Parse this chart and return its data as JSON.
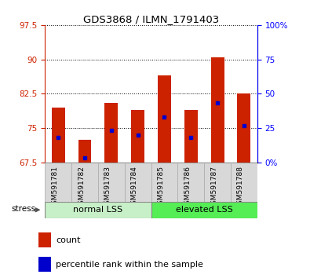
{
  "title": "GDS3868 / ILMN_1791403",
  "samples": [
    "GSM591781",
    "GSM591782",
    "GSM591783",
    "GSM591784",
    "GSM591785",
    "GSM591786",
    "GSM591787",
    "GSM591788"
  ],
  "bar_tops": [
    79.5,
    72.5,
    80.5,
    79.0,
    86.5,
    79.0,
    90.5,
    82.5
  ],
  "bar_bottoms": [
    67.5,
    67.5,
    67.5,
    67.5,
    67.5,
    67.5,
    67.5,
    67.5
  ],
  "blue_markers": [
    73.0,
    68.5,
    74.5,
    73.5,
    77.5,
    73.0,
    80.5,
    75.5
  ],
  "bar_color": "#cc2200",
  "blue_color": "#0000cc",
  "ylim": [
    67.5,
    97.5
  ],
  "yticks": [
    67.5,
    75.0,
    82.5,
    90.0,
    97.5
  ],
  "ytick_labels": [
    "67.5",
    "75",
    "82.5",
    "90",
    "97.5"
  ],
  "right_yticks_pct": [
    0,
    25,
    50,
    75,
    100
  ],
  "right_ytick_labels": [
    "0%",
    "25",
    "50",
    "75",
    "100%"
  ],
  "group1_label": "normal LSS",
  "group2_label": "elevated LSS",
  "group1_indices": [
    0,
    1,
    2,
    3
  ],
  "group2_indices": [
    4,
    5,
    6,
    7
  ],
  "stress_label": "stress",
  "legend_count": "count",
  "legend_pct": "percentile rank within the sample",
  "bg_color_group1": "#c8f0c8",
  "bg_color_group2": "#55ee55",
  "tick_label_color_left": "#cc2200",
  "bar_width": 0.5
}
